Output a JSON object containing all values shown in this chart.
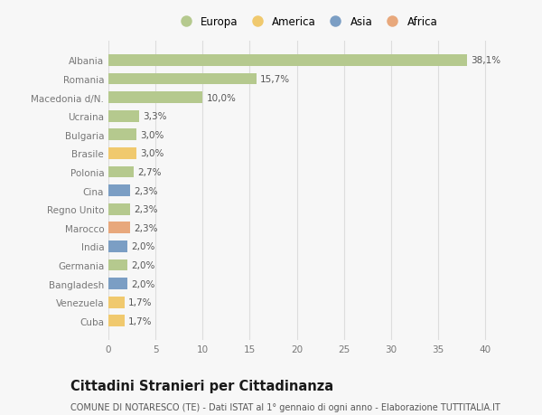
{
  "categories": [
    "Albania",
    "Romania",
    "Macedonia d/N.",
    "Ucraina",
    "Bulgaria",
    "Brasile",
    "Polonia",
    "Cina",
    "Regno Unito",
    "Marocco",
    "India",
    "Germania",
    "Bangladesh",
    "Venezuela",
    "Cuba"
  ],
  "values": [
    38.1,
    15.7,
    10.0,
    3.3,
    3.0,
    3.0,
    2.7,
    2.3,
    2.3,
    2.3,
    2.0,
    2.0,
    2.0,
    1.7,
    1.7
  ],
  "labels": [
    "38,1%",
    "15,7%",
    "10,0%",
    "3,3%",
    "3,0%",
    "3,0%",
    "2,7%",
    "2,3%",
    "2,3%",
    "2,3%",
    "2,0%",
    "2,0%",
    "2,0%",
    "1,7%",
    "1,7%"
  ],
  "continent": [
    "Europa",
    "Europa",
    "Europa",
    "Europa",
    "Europa",
    "America",
    "Europa",
    "Asia",
    "Europa",
    "Africa",
    "Asia",
    "Europa",
    "Asia",
    "America",
    "America"
  ],
  "colors": {
    "Europa": "#b5c98e",
    "America": "#f0c96e",
    "Asia": "#7b9ec4",
    "Africa": "#e8a87c"
  },
  "legend_order": [
    "Europa",
    "America",
    "Asia",
    "Africa"
  ],
  "title": "Cittadini Stranieri per Cittadinanza",
  "subtitle": "COMUNE DI NOTARESCO (TE) - Dati ISTAT al 1° gennaio di ogni anno - Elaborazione TUTTITALIA.IT",
  "xlim": [
    0,
    42
  ],
  "xticks": [
    0,
    5,
    10,
    15,
    20,
    25,
    30,
    35,
    40
  ],
  "background_color": "#f7f7f7",
  "grid_color": "#dddddd",
  "bar_height": 0.62,
  "label_fontsize": 7.5,
  "tick_fontsize": 7.5,
  "title_fontsize": 10.5,
  "subtitle_fontsize": 7.0,
  "legend_fontsize": 8.5
}
